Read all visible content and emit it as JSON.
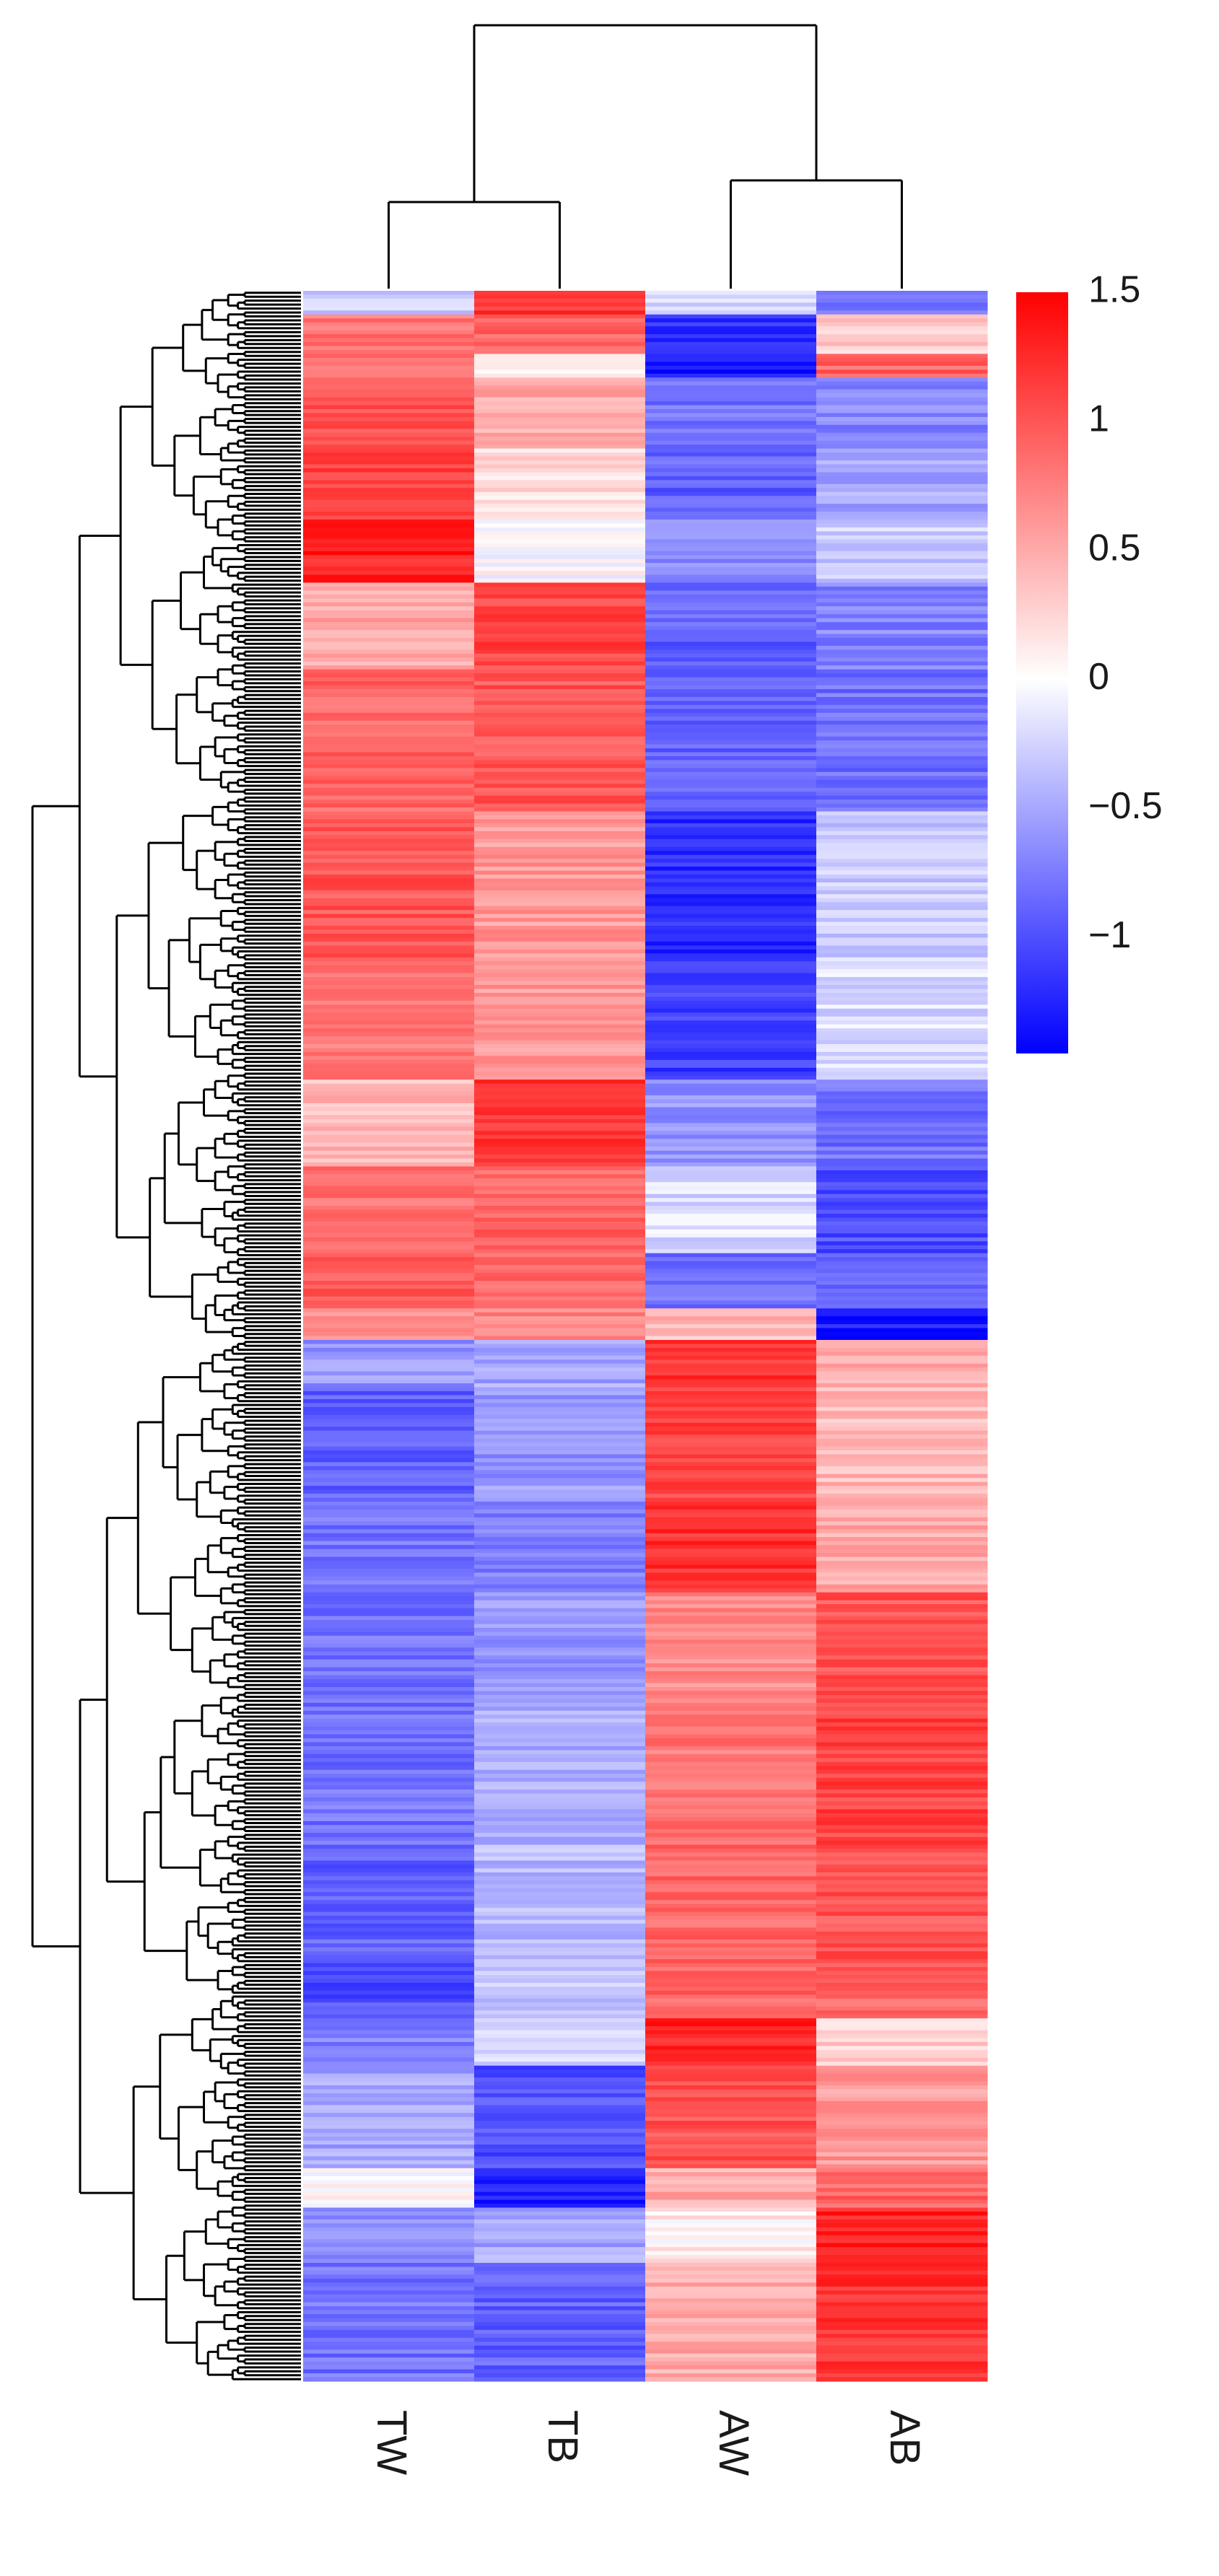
{
  "chart_data": {
    "type": "heatmap",
    "title": "",
    "columns": [
      "TW",
      "TB",
      "AW",
      "AB"
    ],
    "column_dendrogram": {
      "clusters": [
        [
          "TW",
          "TB"
        ],
        [
          "AW",
          "AB"
        ]
      ],
      "root": [
        [
          "TW",
          "TB"
        ],
        [
          "AW",
          "AB"
        ]
      ]
    },
    "row_dendrogram": "hierarchical clustering of rows (shown at left)",
    "colorbar": {
      "ticks": [
        "1.5",
        "1",
        "0.5",
        "0",
        "−0.5",
        "−1"
      ],
      "tick_values": [
        1.5,
        1.0,
        0.5,
        0.0,
        -0.5,
        -1.0
      ],
      "range": [
        -1.45,
        1.5
      ],
      "low_color": "#0000ff",
      "mid_color": "#ffffff",
      "high_color": "#ff0000"
    },
    "row_blocks": [
      {
        "rows": 6,
        "values": [
          -0.3,
          1.2,
          -0.2,
          -0.8
        ]
      },
      {
        "rows": 10,
        "values": [
          0.8,
          0.9,
          -1.2,
          0.3
        ]
      },
      {
        "rows": 6,
        "values": [
          0.9,
          0.1,
          -1.3,
          0.9
        ]
      },
      {
        "rows": 18,
        "values": [
          1.0,
          0.5,
          -0.8,
          -0.7
        ]
      },
      {
        "rows": 18,
        "values": [
          1.1,
          0.2,
          -0.9,
          -0.5
        ]
      },
      {
        "rows": 16,
        "values": [
          1.3,
          0.0,
          -0.7,
          -0.3
        ]
      },
      {
        "rows": 22,
        "values": [
          0.5,
          1.1,
          -0.9,
          -0.7
        ]
      },
      {
        "rows": 36,
        "values": [
          0.9,
          1.0,
          -0.9,
          -0.8
        ]
      },
      {
        "rows": 38,
        "values": [
          1.0,
          0.6,
          -1.2,
          -0.3
        ]
      },
      {
        "rows": 30,
        "values": [
          0.8,
          0.6,
          -1.1,
          -0.2
        ]
      },
      {
        "rows": 22,
        "values": [
          0.4,
          1.2,
          -0.6,
          -0.8
        ]
      },
      {
        "rows": 22,
        "values": [
          0.8,
          0.9,
          -0.2,
          -1.0
        ]
      },
      {
        "rows": 14,
        "values": [
          1.0,
          0.9,
          -0.8,
          -0.9
        ]
      },
      {
        "rows": 8,
        "values": [
          0.6,
          0.7,
          0.4,
          -1.3
        ]
      },
      {
        "rows": 12,
        "values": [
          -0.6,
          -0.5,
          1.2,
          0.5
        ]
      },
      {
        "rows": 28,
        "values": [
          -0.9,
          -0.6,
          1.1,
          0.4
        ]
      },
      {
        "rows": 24,
        "values": [
          -0.8,
          -0.7,
          1.2,
          0.5
        ]
      },
      {
        "rows": 24,
        "values": [
          -0.8,
          -0.6,
          0.7,
          1.0
        ]
      },
      {
        "rows": 40,
        "values": [
          -0.8,
          -0.5,
          0.8,
          1.1
        ]
      },
      {
        "rows": 30,
        "values": [
          -0.9,
          -0.4,
          0.9,
          1.0
        ]
      },
      {
        "rows": 14,
        "values": [
          -1.0,
          -0.3,
          0.9,
          0.9
        ]
      },
      {
        "rows": 12,
        "values": [
          -0.7,
          -0.2,
          1.3,
          0.3
        ]
      },
      {
        "rows": 26,
        "values": [
          -0.5,
          -1.0,
          1.0,
          0.6
        ]
      },
      {
        "rows": 10,
        "values": [
          0.0,
          -1.3,
          0.5,
          0.9
        ]
      },
      {
        "rows": 14,
        "values": [
          -0.6,
          -0.5,
          0.1,
          1.3
        ]
      },
      {
        "rows": 30,
        "values": [
          -0.8,
          -0.9,
          0.5,
          1.2
        ]
      }
    ]
  }
}
